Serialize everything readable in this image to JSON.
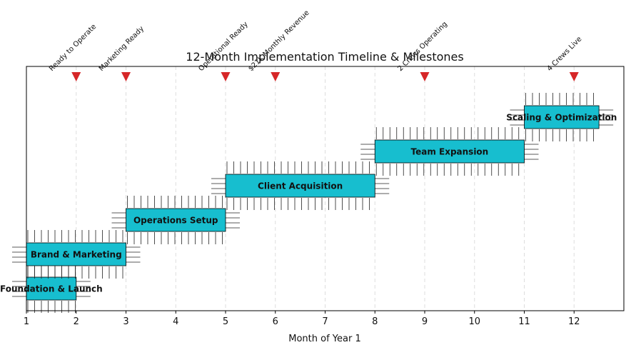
{
  "chart_data": {
    "type": "gantt",
    "title": "12-Month Implementation Timeline & Milestones",
    "xlabel": "Month of Year 1",
    "xlim": [
      1,
      13
    ],
    "xticks": [
      1,
      2,
      3,
      4,
      5,
      6,
      7,
      8,
      9,
      10,
      11,
      12
    ],
    "grid": "vertical-dashed",
    "bar_color": "#17becf",
    "milestone_color": "#d62728",
    "phases": [
      {
        "name": "Foundation & Launch",
        "start": 1,
        "end": 2
      },
      {
        "name": "Brand & Marketing",
        "start": 1,
        "end": 3
      },
      {
        "name": "Operations Setup",
        "start": 3,
        "end": 5
      },
      {
        "name": "Client Acquisition",
        "start": 5,
        "end": 8
      },
      {
        "name": "Team Expansion",
        "start": 8,
        "end": 11
      },
      {
        "name": "Scaling & Optimization",
        "start": 11,
        "end": 12.5
      }
    ],
    "milestones": [
      {
        "month": 2,
        "label": "Ready to Operate"
      },
      {
        "month": 3,
        "label": "Marketing Ready"
      },
      {
        "month": 5,
        "label": "Operational Ready"
      },
      {
        "month": 6,
        "label": "$21K Monthly Revenue"
      },
      {
        "month": 9,
        "label": "2 Crews Operating"
      },
      {
        "month": 12,
        "label": "4 Crews Live"
      }
    ]
  }
}
